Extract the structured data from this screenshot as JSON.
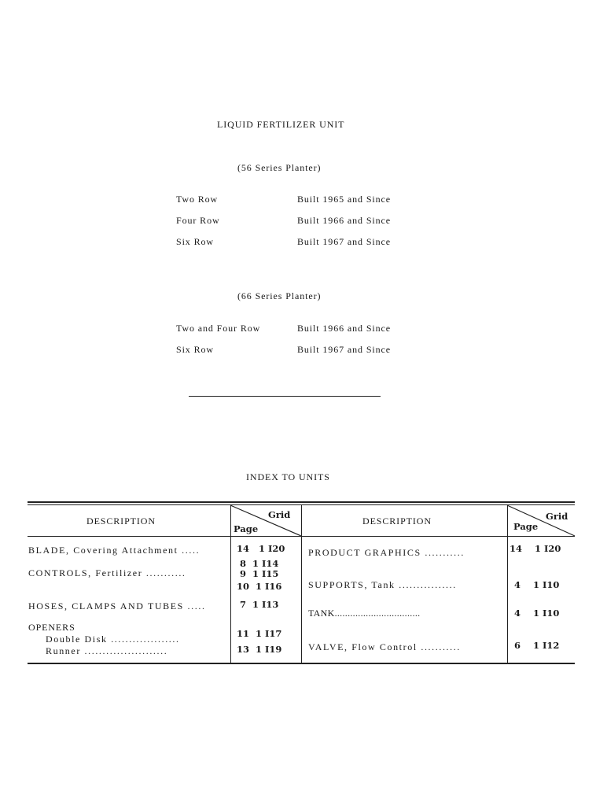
{
  "title": "LIQUID FERTILIZER UNIT",
  "series56": {
    "heading": "(56 Series Planter)",
    "rows": [
      {
        "rows": "Two Row",
        "built": "Built 1965 and Since"
      },
      {
        "rows": "Four Row",
        "built": "Built 1966 and Since"
      },
      {
        "rows": "Six Row",
        "built": "Built 1967 and Since"
      }
    ]
  },
  "series66": {
    "heading": "(66 Series Planter)",
    "rows": [
      {
        "rows": "Two and Four Row",
        "built": "Built 1966 and Since"
      },
      {
        "rows": "Six Row",
        "built": "Built 1967 and Since"
      }
    ]
  },
  "index": {
    "title": "INDEX TO UNITS",
    "header": {
      "description": "DESCRIPTION",
      "grid": "Grid",
      "page": "Page"
    },
    "left": [
      {
        "label": "BLADE, Covering Attachment .....",
        "refs": [
          "14   1 I20"
        ]
      },
      {
        "label": "CONTROLS, Fertilizer ...........",
        "refs": [
          " 8  1 I14",
          " 9  1 I15",
          "10  1 I16"
        ]
      },
      {
        "label": "HOSES, CLAMPS AND TUBES .....",
        "refs": [
          " 7  1 I13"
        ]
      },
      {
        "label": "OPENERS",
        "refs": []
      },
      {
        "label": "Double Disk ...................",
        "refs": [
          "11  1 I17"
        ]
      },
      {
        "label": "Runner .......................",
        "refs": [
          "13  1 I19"
        ]
      }
    ],
    "right": [
      {
        "label": "PRODUCT GRAPHICS ...........",
        "refs": [
          "14    1 I20"
        ]
      },
      {
        "label": "SUPPORTS, Tank ................",
        "refs": [
          "4    1 I10"
        ]
      },
      {
        "label": "TANK.................................",
        "refs": [
          "4    1 I10"
        ]
      },
      {
        "label": "VALVE, Flow Control ...........",
        "refs": [
          "6    1 I12"
        ]
      }
    ]
  }
}
